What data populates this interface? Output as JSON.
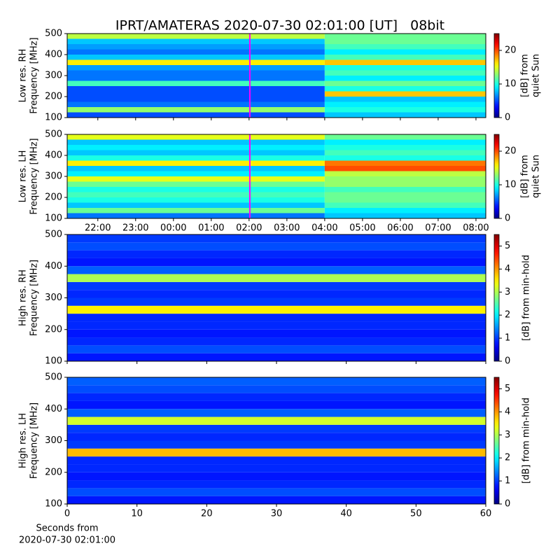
{
  "title": "IPRT/AMATERAS 2020-07-30 02:01:00 [UT]   08bit",
  "chart_data": [
    {
      "type": "heatmap",
      "ylabel": [
        "Low res. RH",
        "Frequency [MHz]"
      ],
      "clabel": [
        "[dB] from",
        "quiet Sun"
      ],
      "colormap": "jet",
      "clim": [
        0,
        25
      ],
      "cticks": [
        0,
        10,
        20
      ],
      "xlim": [
        21.19,
        32.26
      ],
      "xticks": [
        22,
        23,
        24,
        25,
        26,
        27,
        28,
        29,
        30,
        31,
        32
      ],
      "xticklabels": false,
      "ylim": [
        100,
        500
      ],
      "yticks": [
        100,
        200,
        300,
        400,
        500
      ],
      "vline": 26.02,
      "vline_color": "#ff00ff",
      "x_edges": [
        21.19,
        28,
        32.26
      ],
      "y_edges": [
        100,
        125,
        150,
        175,
        200,
        225,
        250,
        275,
        300,
        325,
        350,
        375,
        400,
        425,
        450,
        475,
        500
      ],
      "z": [
        [
          5,
          8
        ],
        [
          13,
          10
        ],
        [
          6,
          9
        ],
        [
          5,
          8
        ],
        [
          5,
          17
        ],
        [
          5,
          10
        ],
        [
          11,
          12
        ],
        [
          6,
          9
        ],
        [
          6,
          11
        ],
        [
          7,
          10
        ],
        [
          16,
          17
        ],
        [
          8,
          11
        ],
        [
          6,
          9
        ],
        [
          7,
          11
        ],
        [
          8,
          12
        ],
        [
          14,
          12
        ]
      ]
    },
    {
      "type": "heatmap",
      "ylabel": [
        "Low res. LH",
        "Frequency [MHz]"
      ],
      "clabel": [
        "[dB] from",
        "quiet Sun"
      ],
      "colormap": "jet",
      "clim": [
        0,
        25
      ],
      "cticks": [
        0,
        10,
        20
      ],
      "xlim": [
        21.19,
        32.26
      ],
      "xticks": [
        {
          "value": 22,
          "label": "22:00"
        },
        {
          "value": 23,
          "label": "23:00"
        },
        {
          "value": 24,
          "label": "00:00"
        },
        {
          "value": 25,
          "label": "01:00"
        },
        {
          "value": 26,
          "label": "02:00"
        },
        {
          "value": 27,
          "label": "03:00"
        },
        {
          "value": 28,
          "label": "04:00"
        },
        {
          "value": 29,
          "label": "05:00"
        },
        {
          "value": 30,
          "label": "06:00"
        },
        {
          "value": 31,
          "label": "07:00"
        },
        {
          "value": 32,
          "label": "08:00"
        }
      ],
      "xticklabels": true,
      "ylim": [
        100,
        500
      ],
      "yticks": [
        100,
        200,
        300,
        400,
        500
      ],
      "vline": 26.02,
      "vline_color": "#ff00ff",
      "x_edges": [
        21.19,
        28,
        32.26
      ],
      "y_edges": [
        100,
        125,
        150,
        175,
        200,
        225,
        250,
        275,
        300,
        325,
        350,
        375,
        400,
        425,
        450,
        475,
        500
      ],
      "z": [
        [
          6,
          8
        ],
        [
          12,
          9
        ],
        [
          8,
          11
        ],
        [
          10,
          12
        ],
        [
          11,
          12
        ],
        [
          10,
          11
        ],
        [
          12,
          13
        ],
        [
          15,
          13
        ],
        [
          9,
          14
        ],
        [
          8,
          20
        ],
        [
          16,
          19
        ],
        [
          10,
          10
        ],
        [
          8,
          11
        ],
        [
          9,
          10
        ],
        [
          8,
          9
        ],
        [
          15,
          12
        ]
      ]
    },
    {
      "type": "heatmap",
      "ylabel": [
        "High res. RH",
        "Frequency [MHz]"
      ],
      "clabel": [
        "[dB] from min-hold"
      ],
      "colormap": "jet",
      "clim": [
        0,
        5.5
      ],
      "cticks": [
        0,
        1,
        2,
        3,
        4,
        5
      ],
      "xlim": [
        0,
        60
      ],
      "xticks": [
        0,
        10,
        20,
        30,
        40,
        50,
        60
      ],
      "xticklabels": false,
      "ylim": [
        100,
        500
      ],
      "yticks": [
        100,
        200,
        300,
        400,
        500
      ],
      "x_edges": [
        0,
        60
      ],
      "y_edges": [
        100,
        125,
        150,
        175,
        200,
        225,
        250,
        275,
        300,
        325,
        350,
        375,
        400,
        425,
        450,
        475,
        500
      ],
      "z": [
        [
          0.8
        ],
        [
          1.1
        ],
        [
          0.9
        ],
        [
          0.8
        ],
        [
          0.9
        ],
        [
          0.9
        ],
        [
          3.5
        ],
        [
          1.0
        ],
        [
          0.9
        ],
        [
          1.0
        ],
        [
          3.0
        ],
        [
          1.2
        ],
        [
          0.8
        ],
        [
          0.9
        ],
        [
          1.1
        ],
        [
          1.0
        ]
      ]
    },
    {
      "type": "heatmap",
      "ylabel": [
        "High res. LH",
        "Frequency [MHz]"
      ],
      "clabel": [
        "[dB] from min-hold"
      ],
      "xlabel": [
        "Seconds from",
        "2020-07-30 02:01:00"
      ],
      "colormap": "jet",
      "clim": [
        0,
        5.5
      ],
      "cticks": [
        0,
        1,
        2,
        3,
        4,
        5
      ],
      "xlim": [
        0,
        60
      ],
      "xticks": [
        0,
        10,
        20,
        30,
        40,
        50,
        60
      ],
      "xticklabels": true,
      "ylim": [
        100,
        500
      ],
      "yticks": [
        100,
        200,
        300,
        400,
        500
      ],
      "x_edges": [
        0,
        60
      ],
      "y_edges": [
        100,
        125,
        150,
        175,
        200,
        225,
        250,
        275,
        300,
        325,
        350,
        375,
        400,
        425,
        450,
        475,
        500
      ],
      "z": [
        [
          0.8
        ],
        [
          1.1
        ],
        [
          0.9
        ],
        [
          0.8
        ],
        [
          0.9
        ],
        [
          0.9
        ],
        [
          3.8
        ],
        [
          1.0
        ],
        [
          0.9
        ],
        [
          1.0
        ],
        [
          3.2
        ],
        [
          1.2
        ],
        [
          0.8
        ],
        [
          0.9
        ],
        [
          1.1
        ],
        [
          1.2
        ]
      ]
    }
  ]
}
